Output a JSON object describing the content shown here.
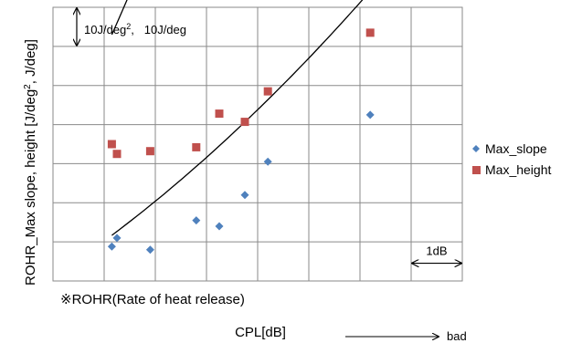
{
  "chart_data": {
    "type": "scatter",
    "title": "",
    "xlabel": "CPL[dB]",
    "ylabel_parts": {
      "before": "ROHR_Max slope, height [J/deg",
      "sup": "2",
      "after": ", J/deg]"
    },
    "ylabel": "ROHR_Max slope, height [J/deg2, J/deg]",
    "x_range": [
      0,
      8
    ],
    "y_range": [
      0,
      7
    ],
    "grid": true,
    "tick_labels_shown": false,
    "legend_position": "right",
    "series": [
      {
        "name": "Max_slope",
        "marker": "diamond",
        "color": "#4f81bd",
        "x": [
          1.15,
          1.25,
          1.9,
          2.8,
          3.25,
          3.75,
          4.2,
          6.2
        ],
        "y": [
          0.88,
          1.1,
          0.8,
          1.55,
          1.4,
          2.2,
          3.05,
          4.25
        ],
        "trendline": {
          "x": [
            1.15,
            6.2
          ],
          "y": [
            0.88,
            4.35
          ],
          "curve": [
            0.05,
            0.87,
            0.1
          ]
        }
      },
      {
        "name": "Max_height",
        "marker": "square",
        "color": "#c0504d",
        "x": [
          1.15,
          1.25,
          1.9,
          2.8,
          3.25,
          3.75,
          4.2,
          6.2
        ],
        "y": [
          3.5,
          3.25,
          3.32,
          3.42,
          4.28,
          4.07,
          4.85,
          6.35
        ],
        "trendline": {
          "x": [
            1.15,
            6.2
          ],
          "y": [
            3.3,
            6.28
          ],
          "curve": [
            0.11,
            2.7,
            3.05
          ]
        }
      }
    ],
    "annotations": {
      "scale_label_parts": [
        "10J/deg",
        "2",
        ",   10J/deg"
      ],
      "scale_label": "10J/deg2,   10J/deg",
      "scale_y": [
        6,
        7
      ],
      "note": "※ROHR(Rate of heat release)",
      "db_label": "1dB",
      "db_x": [
        7,
        8
      ],
      "db_y": 0.5,
      "direction_label": "bad"
    }
  }
}
